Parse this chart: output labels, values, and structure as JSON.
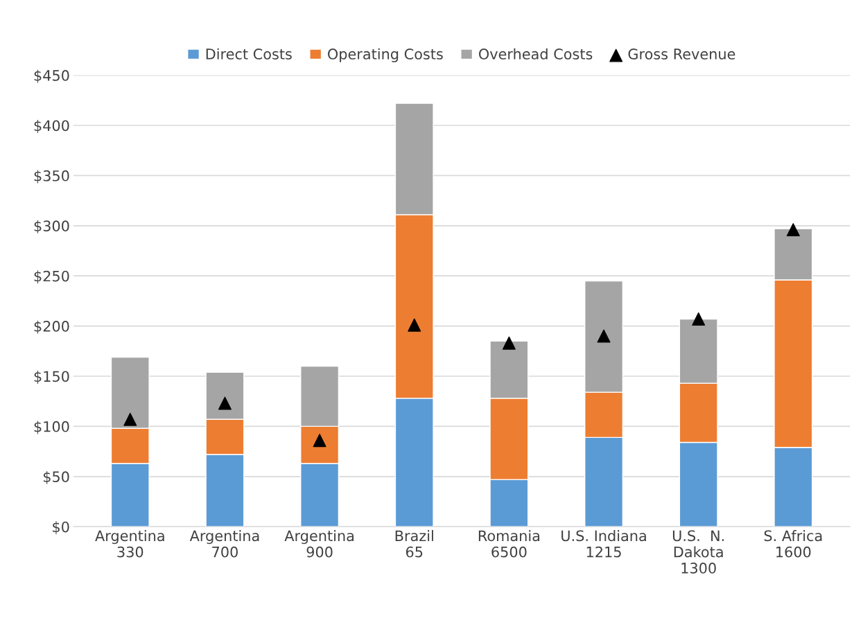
{
  "chart_data": {
    "type": "bar",
    "stacked": true,
    "categories": [
      "Argentina\n330",
      "Argentina\n700",
      "Argentina\n900",
      "Brazil\n65",
      "Romania\n6500",
      "U.S. Indiana\n1215",
      "U.S.  N.\nDakota\n1300",
      "S. Africa\n1600"
    ],
    "series": [
      {
        "name": "Direct Costs",
        "color": "#5b9bd5",
        "values": [
          63,
          72,
          63,
          128,
          47,
          89,
          84,
          79
        ]
      },
      {
        "name": "Operating Costs",
        "color": "#ed7d31",
        "values": [
          35,
          35,
          37,
          183,
          81,
          45,
          59,
          167
        ]
      },
      {
        "name": "Overhead Costs",
        "color": "#a5a5a5",
        "values": [
          71,
          47,
          60,
          111,
          57,
          111,
          64,
          51
        ]
      },
      {
        "name": "Gross Revenue",
        "type": "scatter",
        "marker": "triangle",
        "color": "#000000",
        "values": [
          107,
          123,
          86,
          201,
          183,
          190,
          207,
          296
        ]
      }
    ],
    "ylim": [
      0,
      450
    ],
    "yticks": [
      {
        "value": 0,
        "label": "$0"
      },
      {
        "value": 50,
        "label": "$50"
      },
      {
        "value": 100,
        "label": "$100"
      },
      {
        "value": 150,
        "label": "$150"
      },
      {
        "value": 200,
        "label": "$200"
      },
      {
        "value": 250,
        "label": "$250"
      },
      {
        "value": 300,
        "label": "$300"
      },
      {
        "value": 350,
        "label": "$350"
      },
      {
        "value": 400,
        "label": "$400"
      },
      {
        "value": 450,
        "label": "$450"
      }
    ],
    "grid": "y",
    "legend": "top"
  }
}
